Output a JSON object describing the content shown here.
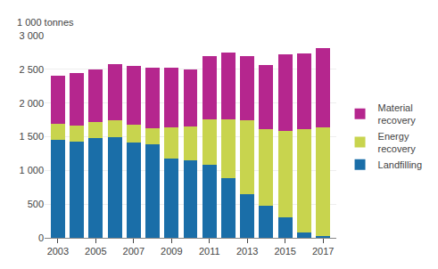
{
  "chart_data": {
    "type": "bar",
    "stacked": true,
    "ylabel": "1 000 tonnes",
    "x": [
      2003,
      2004,
      2005,
      2006,
      2007,
      2008,
      2009,
      2010,
      2011,
      2012,
      2013,
      2014,
      2015,
      2016,
      2017
    ],
    "series": [
      {
        "name": "Landfilling",
        "color": "#1a6ea8",
        "values": [
          1450,
          1430,
          1480,
          1500,
          1410,
          1390,
          1175,
          1145,
          1090,
          890,
          650,
          470,
          300,
          85,
          20
        ]
      },
      {
        "name": "Energy\nrecovery",
        "color": "#c8d44e",
        "values": [
          240,
          240,
          240,
          245,
          265,
          240,
          460,
          510,
          665,
          870,
          1090,
          1140,
          1290,
          1530,
          1625
        ]
      },
      {
        "name": "Material\nrecovery",
        "color": "#b5268e",
        "values": [
          720,
          770,
          775,
          830,
          870,
          900,
          895,
          840,
          940,
          990,
          960,
          955,
          1130,
          1115,
          1165
        ]
      }
    ],
    "xlim": [
      2002.3,
      2017.7
    ],
    "xticks": [
      2003,
      2005,
      2007,
      2009,
      2011,
      2013,
      2015,
      2017
    ],
    "ylim": [
      0,
      3000
    ],
    "yticks": [
      0,
      500,
      {
        "value": 1000,
        "label": "1 000"
      },
      {
        "value": 1500,
        "label": "1 500"
      },
      {
        "value": 2000,
        "label": "2 000"
      },
      {
        "value": 2500,
        "label": "2 500"
      },
      {
        "value": 3000,
        "label": "3 000"
      }
    ],
    "grid": true,
    "legend": "right"
  }
}
